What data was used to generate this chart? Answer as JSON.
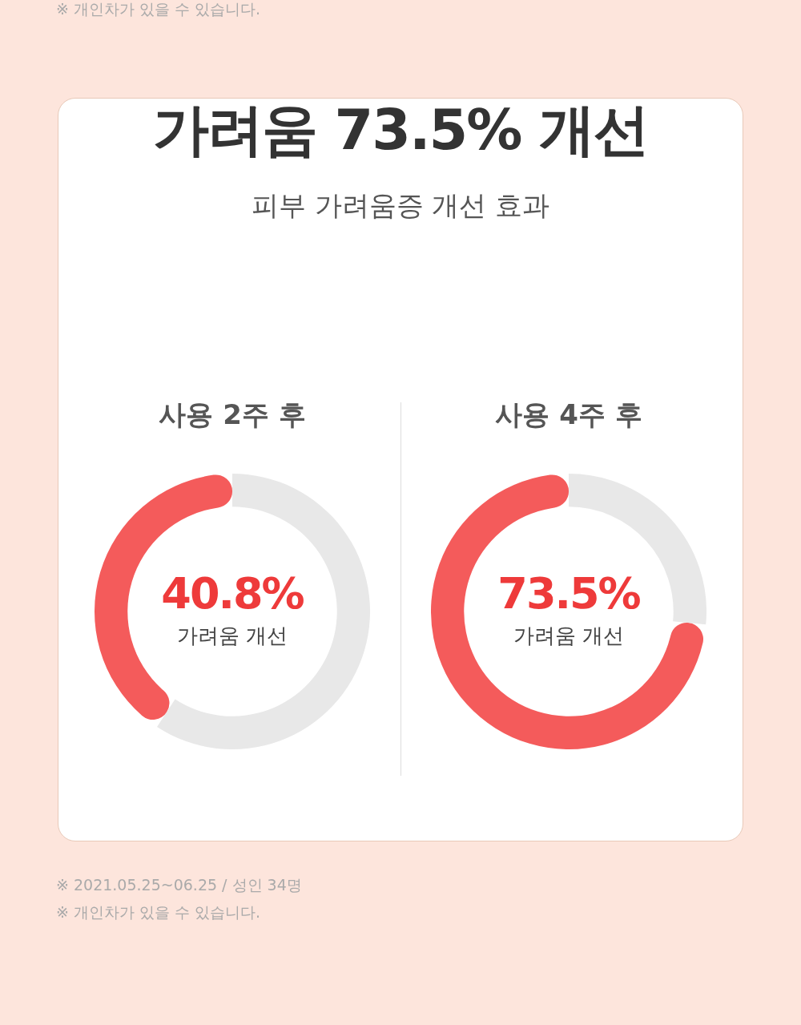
{
  "chart_data": [
    {
      "type": "other",
      "title": "가려움 73.5% 개선",
      "subtitle": "피부 가려움증 개선 효과",
      "annotations": [
        "※ 개인차가 있을 수 있습니다."
      ]
    },
    {
      "type": "donut",
      "title": "사용 2주 후",
      "categories": [
        "가려움 개선",
        null
      ],
      "values": [
        40.8,
        59.2
      ],
      "colors": [
        "#f45b5b",
        "#e8e8e8"
      ],
      "value_labels": [
        "40.8%",
        null
      ]
    },
    {
      "type": "donut",
      "title": "사용 4주 후",
      "categories": [
        "가려움 개선",
        null
      ],
      "values": [
        73.5,
        26.5
      ],
      "colors": [
        "#f45b5b",
        "#e8e8e8"
      ],
      "value_labels": [
        "73.5%",
        null
      ]
    },
    {
      "type": "other",
      "annotations": [
        "※ 2021.05.25~06.25 / 성인 34명",
        "※ 개인차가 있을 수 있습니다."
      ]
    }
  ]
}
